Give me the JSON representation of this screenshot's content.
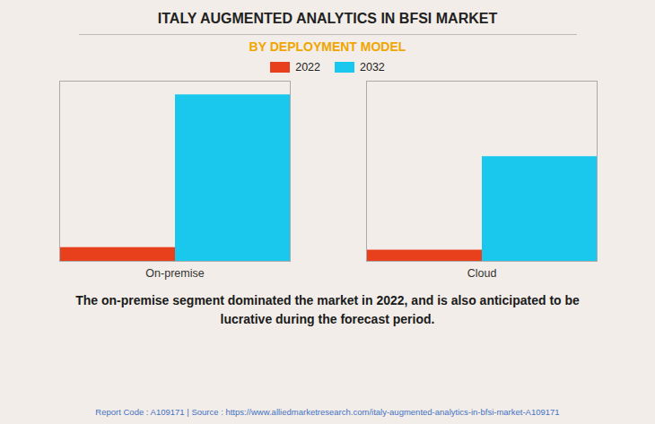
{
  "chart_data": {
    "type": "bar",
    "title": "ITALY AUGMENTED ANALYTICS IN BFSI MARKET",
    "subtitle": "BY DEPLOYMENT MODEL",
    "subtitle_color": "#F0A500",
    "categories": [
      "On-premise",
      "Cloud"
    ],
    "series": [
      {
        "name": "2022",
        "color": "#E8401C",
        "values": [
          0.08,
          0.065
        ]
      },
      {
        "name": "2032",
        "color": "#1AC8EE",
        "values": [
          0.97,
          0.61
        ]
      }
    ],
    "ylim": [
      0,
      1.05
    ],
    "yticks": [],
    "grid": false,
    "legend": "top",
    "tick_labels": "x",
    "annotation": "The on-premise segment dominated the market in 2022, and is also anticipated to be\nlucrative during the forecast period.",
    "footer": "Report Code : A109171  |  Source : https://www.alliedmarketresearch.com/italy-augmented-analytics-in-bfsi-market-A109171",
    "footer_color": "#4472C4"
  }
}
